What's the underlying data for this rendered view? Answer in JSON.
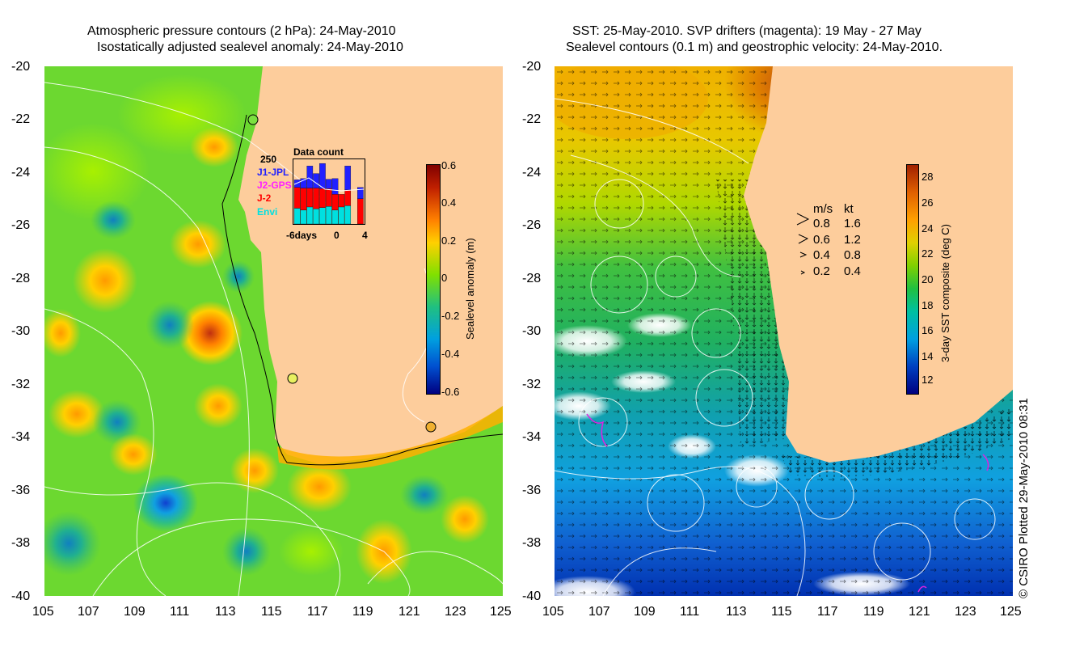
{
  "left_panel": {
    "title_line1": "Atmospheric pressure contours (2 hPa): 24-May-2010",
    "title_line2": "Isostatically adjusted sealevel anomaly: 24-May-2010",
    "y_ticks": [
      "-20",
      "-22",
      "-24",
      "-26",
      "-28",
      "-30",
      "-32",
      "-34",
      "-36",
      "-38",
      "-40"
    ],
    "x_ticks": [
      "105",
      "107",
      "109",
      "111",
      "113",
      "115",
      "117",
      "119",
      "121",
      "123",
      "125"
    ],
    "colorbar": {
      "label": "Sealevel anomaly (m)",
      "ticks": [
        "0.6",
        "0.4",
        "0.2",
        "0",
        "-0.2",
        "-0.4",
        "-0.6"
      ],
      "colors": [
        "#000080",
        "#0050d0",
        "#00a0e0",
        "#20c080",
        "#80e000",
        "#ffd000",
        "#ff8000",
        "#c02000",
        "#800000"
      ]
    },
    "inset": {
      "title": "Data count",
      "y_max": "250",
      "legend": [
        {
          "label": "J1-JPL",
          "color": "#2020ff"
        },
        {
          "label": "J2-GPS",
          "color": "#ff20ff"
        },
        {
          "label": "J-2",
          "color": "#ff0000"
        },
        {
          "label": "Envi",
          "color": "#00e0e0"
        }
      ],
      "x_labels": [
        "-6days",
        "0",
        "4"
      ],
      "bars": [
        {
          "envi": 0.25,
          "j2": 0.33,
          "j1": 0.12
        },
        {
          "envi": 0.22,
          "j2": 0.35,
          "j1": 0.15
        },
        {
          "envi": 0.27,
          "j2": 0.3,
          "j1": 0.35
        },
        {
          "envi": 0.24,
          "j2": 0.33,
          "j1": 0.23
        },
        {
          "envi": 0.26,
          "j2": 0.3,
          "j1": 0.4
        },
        {
          "envi": 0.28,
          "j2": 0.28,
          "j1": 0.15
        },
        {
          "envi": 0.22,
          "j2": 0.25,
          "j1": 0.25
        },
        {
          "envi": 0.27,
          "j2": 0.2,
          "j1": 0.0
        },
        {
          "envi": 0.29,
          "j2": 0.25,
          "j1": 0.38
        },
        {
          "envi": 0.0,
          "j2": 0.0,
          "j1": 0.0
        },
        {
          "envi": 0.0,
          "j2": 0.4,
          "j1": 0.18
        }
      ]
    }
  },
  "right_panel": {
    "title_line1": "SST: 25-May-2010. SVP drifters (magenta): 19 May - 27 May",
    "title_line2": "Sealevel contours (0.1 m) and geostrophic velocity: 24-May-2010.",
    "y_ticks": [
      "-20",
      "-22",
      "-24",
      "-26",
      "-28",
      "-30",
      "-32",
      "-34",
      "-36",
      "-38",
      "-40"
    ],
    "x_ticks": [
      "105",
      "107",
      "109",
      "111",
      "113",
      "115",
      "117",
      "119",
      "121",
      "123",
      "125"
    ],
    "colorbar": {
      "label": "3-day SST composite (deg C)",
      "ticks": [
        "28",
        "26",
        "24",
        "22",
        "20",
        "18",
        "16",
        "14",
        "12"
      ],
      "colors": [
        "#000080",
        "#0040c0",
        "#00a0e0",
        "#00c0a0",
        "#20c040",
        "#80d000",
        "#e0d000",
        "#ffa000",
        "#e06000",
        "#a02000"
      ]
    },
    "velocity_legend": {
      "header_ms": "m/s",
      "header_kt": "kt",
      "rows": [
        {
          "ms": "0.8",
          "kt": "1.6"
        },
        {
          "ms": "0.6",
          "kt": "1.2"
        },
        {
          "ms": "0.4",
          "kt": "0.8"
        },
        {
          "ms": "0.2",
          "kt": "0.4"
        }
      ]
    }
  },
  "copyright": "© CSIRO Plotted 29-May-2010 08:31"
}
